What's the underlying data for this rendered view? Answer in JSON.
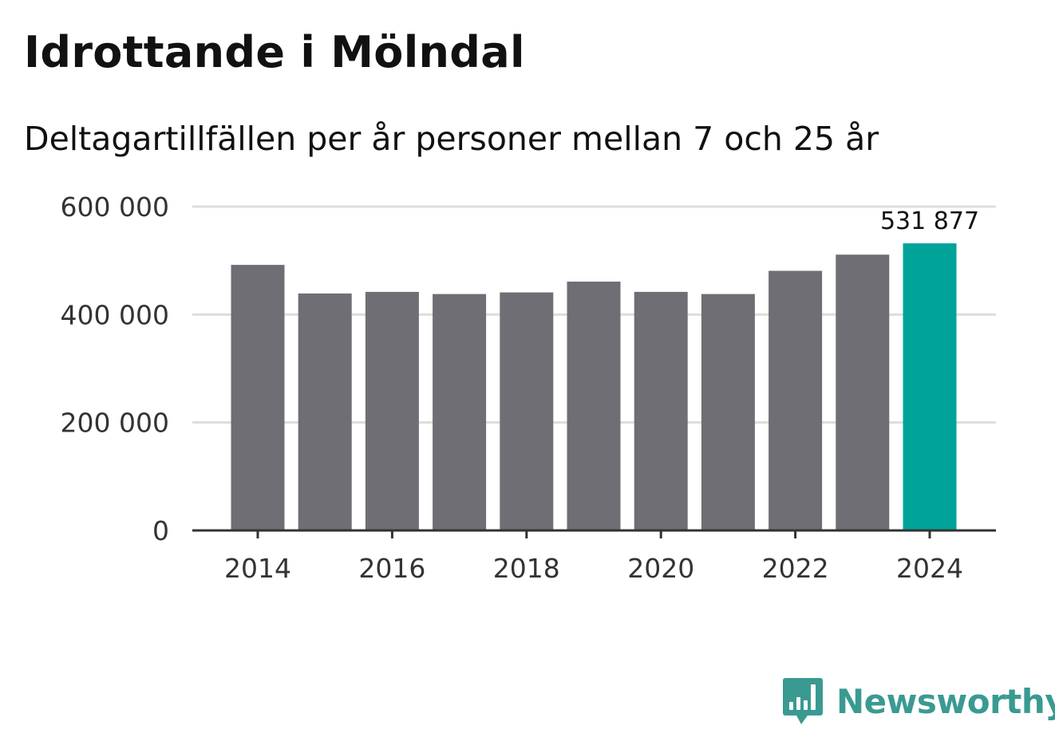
{
  "header": {
    "title": "Idrottande i Mölndal",
    "subtitle": "Deltagartillfällen per år personer mellan 7 och 25 år"
  },
  "chart_data": {
    "type": "bar",
    "title": "Idrottande i Mölndal",
    "subtitle": "Deltagartillfällen per år personer mellan 7 och 25 år",
    "xlabel": "",
    "ylabel": "",
    "categories": [
      "2014",
      "2015",
      "2016",
      "2017",
      "2018",
      "2019",
      "2020",
      "2021",
      "2022",
      "2023",
      "2024"
    ],
    "values": [
      492000,
      439000,
      442000,
      438000,
      441000,
      461000,
      442000,
      438000,
      481000,
      511000,
      531877
    ],
    "ylim": [
      0,
      600000
    ],
    "yticks": [
      0,
      200000,
      400000,
      600000
    ],
    "ytick_labels": [
      "0",
      "200 000",
      "400 000",
      "600 000"
    ],
    "xtick_labels": [
      "2014",
      "2016",
      "2018",
      "2020",
      "2022",
      "2024"
    ],
    "highlight_index": 10,
    "highlight_label": "531 877",
    "grid": true,
    "colors": {
      "bar": "#6f6e74",
      "highlight": "#00a398",
      "grid": "#dddddd",
      "axis": "#333333"
    }
  },
  "brand": {
    "name": "Newsworthy",
    "color": "#3a9a92",
    "icon": "newsworthy-chat-bar-icon"
  }
}
